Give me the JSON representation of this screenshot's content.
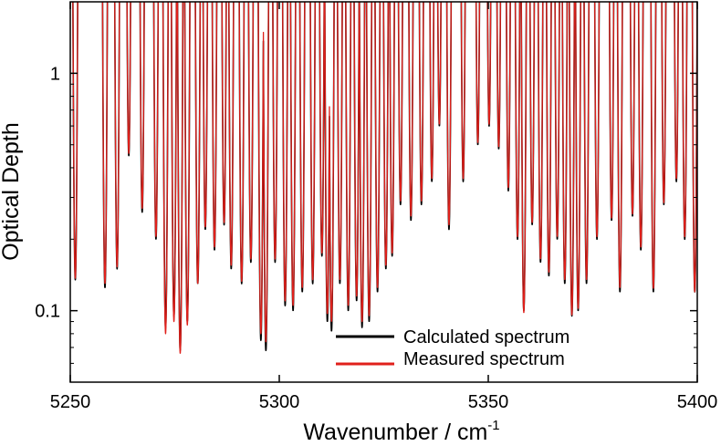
{
  "chart_data": {
    "type": "line",
    "xlabel": "Wavenumber / cm",
    "xlabel_superscript": "-1",
    "ylabel": "Optical Depth",
    "xlim": [
      5250,
      5400
    ],
    "ylim": [
      0.05,
      2.0
    ],
    "y_scale": "log",
    "x_ticks": [
      5250,
      5300,
      5350,
      5400
    ],
    "x_tick_labels": [
      "5250",
      "5300",
      "5350",
      "5400"
    ],
    "y_ticks": [
      0.1,
      1
    ],
    "y_tick_labels": [
      "0.1",
      "1"
    ],
    "grid": false,
    "legend_position": "bottom-center",
    "series": [
      {
        "name": "Calculated spectrum",
        "color": "#000000",
        "minima": [
          [
            5251.2,
            0.135
          ],
          [
            5258.3,
            0.125
          ],
          [
            5261.2,
            0.15
          ],
          [
            5264.0,
            0.45
          ],
          [
            5267.2,
            0.26
          ],
          [
            5270.5,
            0.2
          ],
          [
            5272.8,
            0.085
          ],
          [
            5274.8,
            0.095
          ],
          [
            5276.3,
            0.068
          ],
          [
            5278.0,
            0.09
          ],
          [
            5280.5,
            0.13
          ],
          [
            5282.3,
            0.22
          ],
          [
            5284.5,
            0.18
          ],
          [
            5286.8,
            0.23
          ],
          [
            5288.5,
            0.15
          ],
          [
            5291.0,
            0.13
          ],
          [
            5293.2,
            0.16
          ],
          [
            5295.6,
            0.075
          ],
          [
            5296.8,
            0.068
          ],
          [
            5299.0,
            0.16
          ],
          [
            5301.4,
            0.105
          ],
          [
            5303.3,
            0.1
          ],
          [
            5305.5,
            0.12
          ],
          [
            5308.0,
            0.13
          ],
          [
            5310.2,
            0.17
          ],
          [
            5311.5,
            0.09
          ],
          [
            5312.5,
            0.082
          ],
          [
            5314.5,
            0.13
          ],
          [
            5316.5,
            0.1
          ],
          [
            5318.5,
            0.11
          ],
          [
            5319.8,
            0.085
          ],
          [
            5321.5,
            0.09
          ],
          [
            5323.5,
            0.12
          ],
          [
            5325.5,
            0.15
          ],
          [
            5327.0,
            0.17
          ],
          [
            5329.0,
            0.28
          ],
          [
            5331.5,
            0.24
          ],
          [
            5334.0,
            0.28
          ],
          [
            5336.5,
            0.35
          ],
          [
            5338.3,
            0.6
          ],
          [
            5340.6,
            0.22
          ],
          [
            5344.0,
            0.35
          ],
          [
            5347.5,
            0.5
          ],
          [
            5350.2,
            0.6
          ],
          [
            5352.5,
            0.48
          ],
          [
            5354.8,
            0.32
          ],
          [
            5357.0,
            0.2
          ],
          [
            5358.5,
            0.1
          ],
          [
            5360.5,
            0.23
          ],
          [
            5362.5,
            0.16
          ],
          [
            5364.5,
            0.14
          ],
          [
            5366.5,
            0.2
          ],
          [
            5368.3,
            0.13
          ],
          [
            5370.0,
            0.095
          ],
          [
            5371.5,
            0.1
          ],
          [
            5373.5,
            0.13
          ],
          [
            5376.0,
            0.2
          ],
          [
            5379.5,
            0.24
          ],
          [
            5381.5,
            0.12
          ],
          [
            5384.5,
            0.25
          ],
          [
            5386.5,
            0.18
          ],
          [
            5389.5,
            0.12
          ],
          [
            5392.0,
            0.28
          ],
          [
            5395.0,
            0.35
          ],
          [
            5397.0,
            0.2
          ],
          [
            5399.4,
            0.12
          ]
        ]
      },
      {
        "name": "Measured spectrum",
        "color": "#e0201b",
        "minima": [
          [
            5251.2,
            0.137
          ],
          [
            5258.3,
            0.13
          ],
          [
            5261.2,
            0.153
          ],
          [
            5264.0,
            0.46
          ],
          [
            5267.2,
            0.27
          ],
          [
            5270.5,
            0.205
          ],
          [
            5272.8,
            0.08
          ],
          [
            5274.8,
            0.09
          ],
          [
            5276.3,
            0.066
          ],
          [
            5278.0,
            0.087
          ],
          [
            5280.5,
            0.13
          ],
          [
            5282.3,
            0.225
          ],
          [
            5284.5,
            0.185
          ],
          [
            5286.8,
            0.235
          ],
          [
            5288.5,
            0.155
          ],
          [
            5291.0,
            0.133
          ],
          [
            5293.2,
            0.165
          ],
          [
            5295.6,
            0.08
          ],
          [
            5296.8,
            0.074
          ],
          [
            5299.0,
            0.165
          ],
          [
            5301.4,
            0.11
          ],
          [
            5303.3,
            0.105
          ],
          [
            5305.5,
            0.125
          ],
          [
            5308.0,
            0.135
          ],
          [
            5310.2,
            0.175
          ],
          [
            5311.5,
            0.097
          ],
          [
            5312.5,
            0.09
          ],
          [
            5314.5,
            0.135
          ],
          [
            5316.5,
            0.105
          ],
          [
            5318.5,
            0.115
          ],
          [
            5319.8,
            0.09
          ],
          [
            5321.5,
            0.095
          ],
          [
            5323.5,
            0.125
          ],
          [
            5325.5,
            0.155
          ],
          [
            5327.0,
            0.175
          ],
          [
            5329.0,
            0.29
          ],
          [
            5331.5,
            0.25
          ],
          [
            5334.0,
            0.29
          ],
          [
            5336.5,
            0.36
          ],
          [
            5338.3,
            0.61
          ],
          [
            5340.6,
            0.23
          ],
          [
            5344.0,
            0.36
          ],
          [
            5347.5,
            0.51
          ],
          [
            5350.2,
            0.61
          ],
          [
            5352.5,
            0.49
          ],
          [
            5354.8,
            0.33
          ],
          [
            5357.0,
            0.205
          ],
          [
            5358.5,
            0.098
          ],
          [
            5360.5,
            0.235
          ],
          [
            5362.5,
            0.165
          ],
          [
            5364.5,
            0.145
          ],
          [
            5366.5,
            0.205
          ],
          [
            5368.3,
            0.135
          ],
          [
            5370.0,
            0.096
          ],
          [
            5371.5,
            0.102
          ],
          [
            5373.5,
            0.135
          ],
          [
            5376.0,
            0.205
          ],
          [
            5379.5,
            0.245
          ],
          [
            5381.5,
            0.125
          ],
          [
            5384.5,
            0.255
          ],
          [
            5386.5,
            0.185
          ],
          [
            5389.5,
            0.124
          ],
          [
            5392.0,
            0.285
          ],
          [
            5395.0,
            0.36
          ],
          [
            5397.0,
            0.205
          ],
          [
            5399.4,
            0.12
          ]
        ]
      }
    ]
  }
}
